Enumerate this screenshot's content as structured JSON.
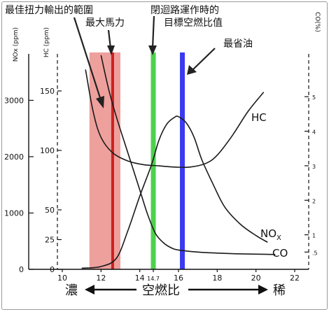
{
  "chart_data": {
    "type": "line",
    "x_axis": {
      "ticks": [
        "10",
        "12",
        "14",
        "14.7",
        "16",
        "18",
        "20",
        "22"
      ],
      "range": [
        10,
        22
      ],
      "left_label": "濃",
      "center_label": "空燃比",
      "right_label": "稀"
    },
    "y_axes": {
      "nox": {
        "title": "NOx (ppm)",
        "ticks": [
          "0",
          "1000",
          "2000",
          "3000"
        ],
        "range": [
          0,
          3800
        ]
      },
      "hc": {
        "title": "HC (ppm)",
        "ticks": [
          "0",
          "25",
          "50",
          "100",
          "150"
        ],
        "range": [
          0,
          180
        ]
      },
      "co": {
        "title": "CO(%)",
        "ticks": [
          ".5",
          "1",
          "2",
          "3",
          "4",
          "5"
        ],
        "range": [
          0,
          6.2
        ]
      }
    },
    "bands": [
      {
        "label": "最佳扭力輸出的範圍",
        "x_range": [
          11.4,
          13.0
        ],
        "color": "#e8807c"
      },
      {
        "label": "最大馬力",
        "x": 12.6,
        "color": "#cc2020"
      },
      {
        "label": "閉迴路運作時的目標空燃比值",
        "x": 14.7,
        "color": "#4cd24c"
      },
      {
        "label": "最省油",
        "x": 16.2,
        "color": "#3a3af0"
      }
    ],
    "series": [
      {
        "name": "HC",
        "axis": "hc",
        "x": [
          11.2,
          11.6,
          12.0,
          12.6,
          13.4,
          14.2,
          15.0,
          15.8,
          16.6,
          17.4,
          18.0,
          18.8,
          19.6,
          20.4
        ],
        "values": [
          168,
          132,
          111,
          98,
          91,
          88,
          87,
          86,
          86,
          89,
          96,
          113,
          133,
          149
        ]
      },
      {
        "name": "NOx",
        "axis": "nox",
        "x": [
          11.0,
          12.0,
          12.8,
          13.4,
          14.0,
          14.6,
          15.0,
          15.4,
          15.8,
          16.0,
          16.4,
          16.8,
          17.2,
          17.8,
          18.4,
          19.2,
          20.0,
          20.6
        ],
        "values": [
          20,
          50,
          200,
          700,
          1300,
          1850,
          2300,
          2580,
          2700,
          2710,
          2600,
          2350,
          1950,
          1500,
          1100,
          800,
          600,
          480
        ]
      },
      {
        "name": "CO",
        "axis": "co",
        "x": [
          12.0,
          12.4,
          12.8,
          13.2,
          13.6,
          14.0,
          14.4,
          14.8,
          15.2,
          15.6,
          16.0,
          17.0,
          18.0,
          19.0,
          20.0,
          21.0
        ],
        "values": [
          6.2,
          5.2,
          4.4,
          3.7,
          3.0,
          2.3,
          1.6,
          1.05,
          0.78,
          0.63,
          0.56,
          0.5,
          0.47,
          0.45,
          0.44,
          0.43
        ]
      }
    ],
    "series_labels": {
      "HC": "HC",
      "NOx": "NO",
      "NOx_sub": "X",
      "CO": "CO"
    },
    "grid": false
  }
}
